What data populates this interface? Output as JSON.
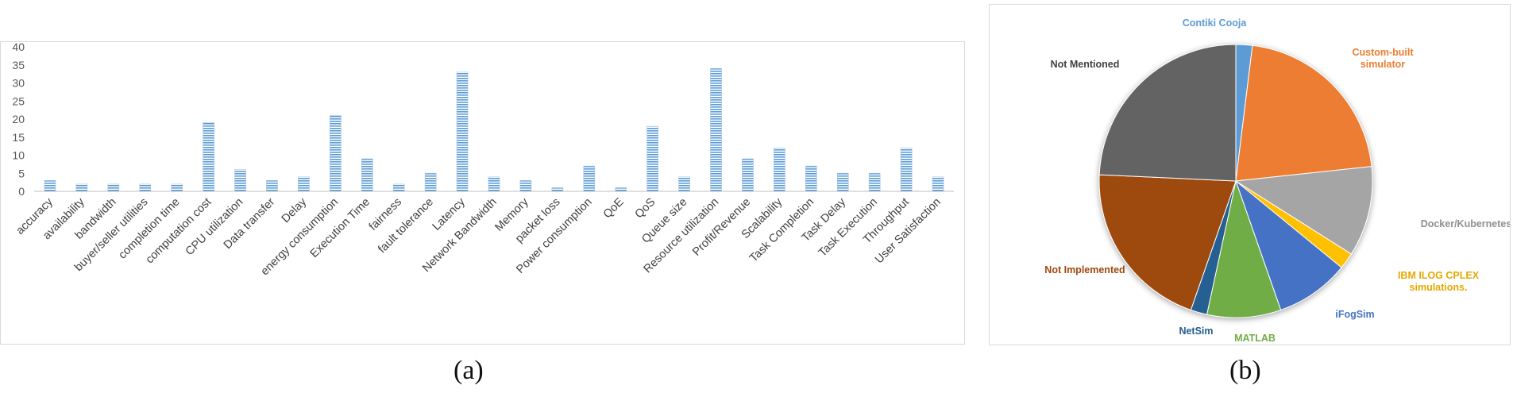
{
  "captions": {
    "a": "(a)",
    "b": "(b)"
  },
  "chart_data": [
    {
      "type": "bar",
      "categories": [
        "accuracy",
        "availability",
        "bandwidth",
        "buyer/seller utilities",
        "completion time",
        "computation cost",
        "CPU utilization",
        "Data transfer",
        "Delay",
        "energy consumption",
        "Execution Time",
        "fairness",
        "fault tolerance",
        "Latency",
        "Network Bandwidth",
        "Memory",
        "packet loss",
        "Power consumption",
        "QoE",
        "QoS",
        "Queue size",
        "Resource utilization",
        "Profit/Revenue",
        "Scalability",
        "Task Completion",
        "Task Delay",
        "Task Execution",
        "Throughput",
        "User Satisfaction"
      ],
      "values": [
        3,
        2,
        2,
        2,
        2,
        19,
        6,
        3,
        4,
        21,
        9,
        2,
        5,
        33,
        4,
        3,
        1,
        7,
        1,
        18,
        4,
        34,
        9,
        12,
        7,
        5,
        5,
        12,
        4
      ],
      "yticks": [
        "0",
        "5",
        "10",
        "15",
        "20",
        "25",
        "30",
        "35",
        "40"
      ],
      "ylim": [
        0,
        40
      ],
      "grid": false,
      "bar_color": "#5b9bd5"
    },
    {
      "type": "pie",
      "slices": [
        {
          "label": "Contiki Cooja",
          "value": 2,
          "color": "#5b9bd5"
        },
        {
          "label": "Custom-built simulator",
          "value": 22,
          "color": "#ed7d31"
        },
        {
          "label": "Docker/Kubernetes",
          "value": 11,
          "color": "#a5a5a5"
        },
        {
          "label": "IBM ILOG CPLEX simulations.",
          "value": 2,
          "color": "#ffc000"
        },
        {
          "label": "iFogSim",
          "value": 9,
          "color": "#4472c4"
        },
        {
          "label": "MATLAB",
          "value": 9,
          "color": "#70ad47"
        },
        {
          "label": "NetSim",
          "value": 2,
          "color": "#255e91"
        },
        {
          "label": "Not Implemented",
          "value": 21,
          "color": "#9e480e"
        },
        {
          "label": "Not Mentioned",
          "value": 25,
          "color": "#636363"
        }
      ]
    }
  ]
}
